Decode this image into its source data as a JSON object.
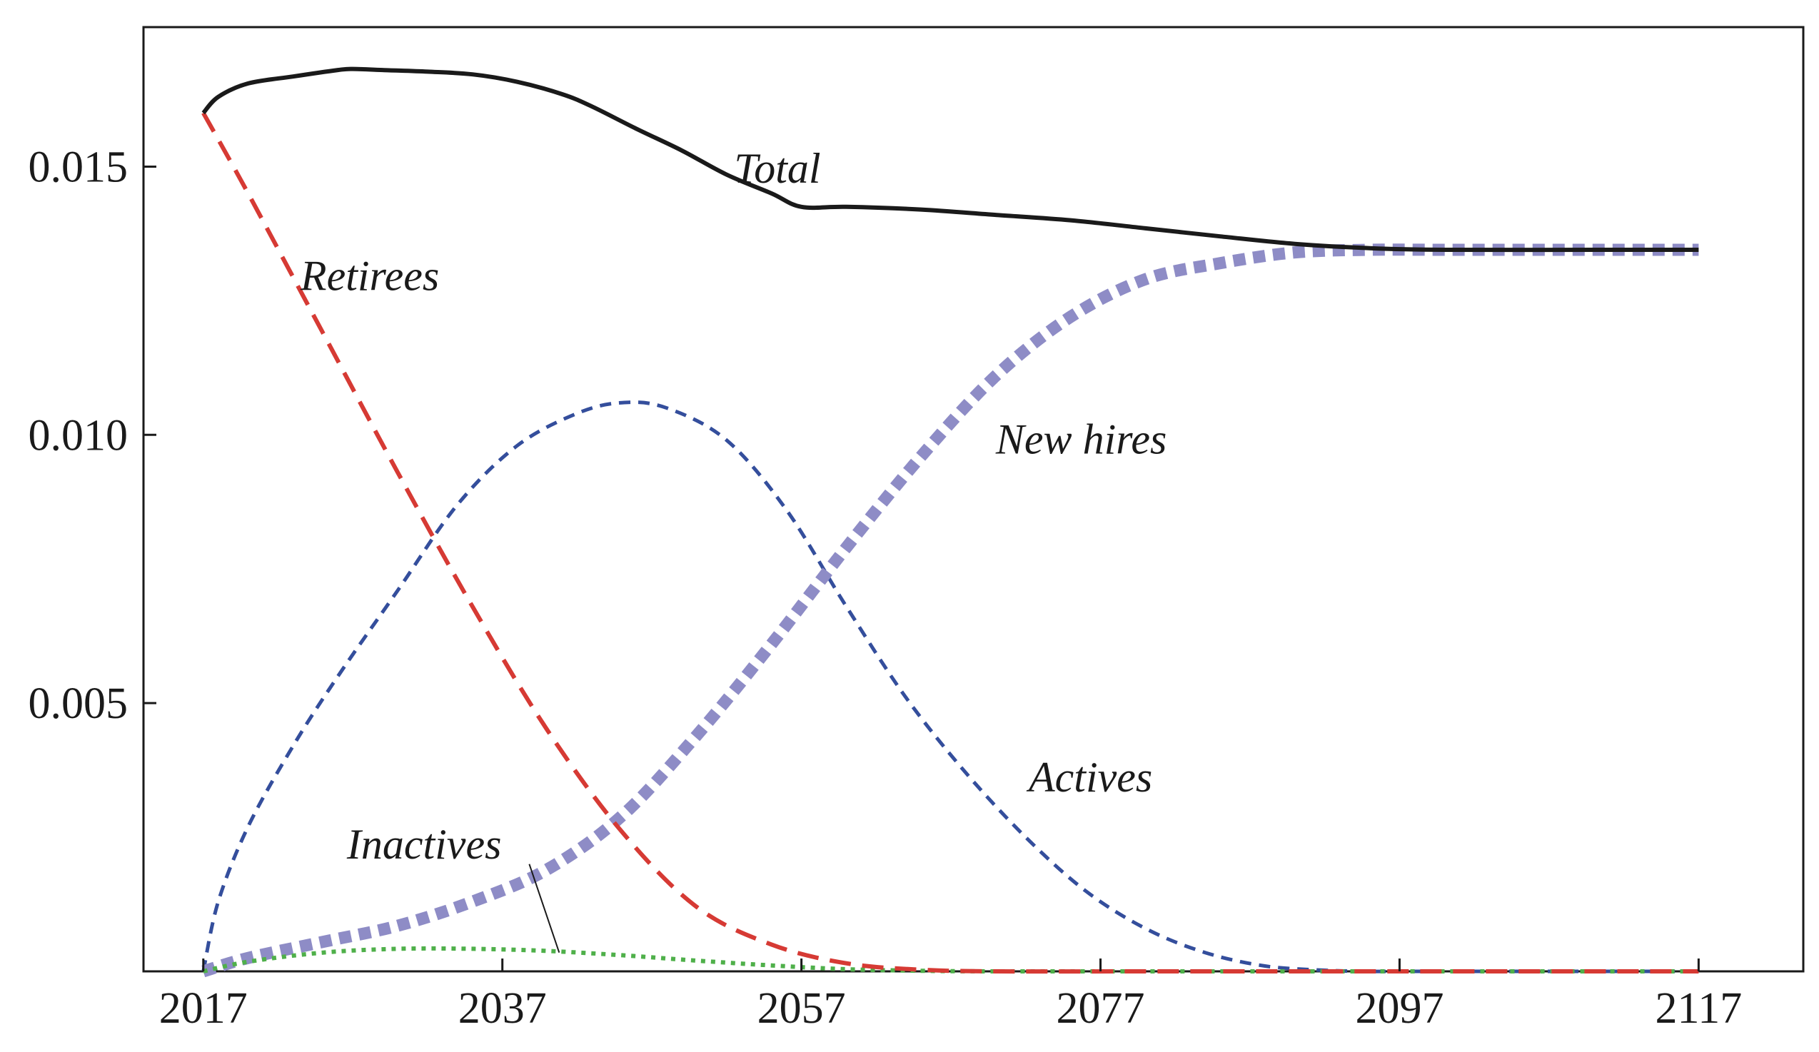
{
  "chart_data": {
    "type": "line",
    "title": "",
    "xlabel": "",
    "ylabel": "",
    "xlim": [
      2013,
      2124
    ],
    "ylim": [
      0,
      0.0176
    ],
    "grid": false,
    "legend": "none (series labeled inline)",
    "x_ticks": [
      2017,
      2037,
      2057,
      2077,
      2097,
      2117
    ],
    "x_tick_labels": [
      "2017",
      "2037",
      "2057",
      "2077",
      "2097",
      "2117"
    ],
    "y_ticks": [
      0.005,
      0.01,
      0.015
    ],
    "y_tick_labels": [
      "0.005",
      "0.010",
      "0.015"
    ],
    "series": [
      {
        "name": "Total",
        "label": "Total",
        "color": "#1a1a1a",
        "style": "solid",
        "x": [
          2017,
          2018,
          2020,
          2023,
          2026,
          2027,
          2029,
          2032,
          2035,
          2038,
          2041,
          2043,
          2046,
          2049,
          2052,
          2055,
          2057,
          2060,
          2065,
          2070,
          2075,
          2080,
          2085,
          2090,
          2095,
          2100,
          2110,
          2117
        ],
        "values": [
          0.016,
          0.0163,
          0.01655,
          0.01668,
          0.0168,
          0.01682,
          0.0168,
          0.01677,
          0.01672,
          0.01658,
          0.01635,
          0.01612,
          0.0157,
          0.0153,
          0.01485,
          0.0145,
          0.01425,
          0.01425,
          0.0142,
          0.0141,
          0.014,
          0.01385,
          0.0137,
          0.01356,
          0.01348,
          0.01345,
          0.01345,
          0.01345
        ]
      },
      {
        "name": "Retirees",
        "label": "Retirees",
        "color": "#d63a34",
        "style": "long-dash",
        "x": [
          2017,
          2020,
          2025,
          2030,
          2035,
          2040,
          2045,
          2050,
          2055,
          2060,
          2065,
          2070,
          2080,
          2090,
          2100,
          2117
        ],
        "values": [
          0.016,
          0.0145,
          0.0119,
          0.0093,
          0.0068,
          0.0045,
          0.0026,
          0.0012,
          0.0005,
          0.00015,
          3e-05,
          0.0,
          0.0,
          0.0,
          0.0,
          0.0
        ]
      },
      {
        "name": "Actives",
        "label": "Actives",
        "color": "#344e9c",
        "style": "short-dash",
        "x": [
          2017,
          2018,
          2020,
          2023,
          2026,
          2030,
          2034,
          2038,
          2042,
          2045,
          2048,
          2052,
          2056,
          2060,
          2064,
          2068,
          2072,
          2076,
          2080,
          2084,
          2088,
          2092,
          2095,
          2100,
          2117
        ],
        "values": [
          0.0,
          0.0013,
          0.0027,
          0.0042,
          0.0055,
          0.0071,
          0.0087,
          0.0098,
          0.0104,
          0.0106,
          0.0105,
          0.0099,
          0.0086,
          0.0068,
          0.0051,
          0.0037,
          0.0025,
          0.0015,
          0.0008,
          0.00035,
          0.0001,
          2e-05,
          0.0,
          0.0,
          0.0
        ]
      },
      {
        "name": "New hires",
        "label": "New hires",
        "color": "#8e8cc6",
        "style": "thick-dotted",
        "x": [
          2017,
          2020,
          2025,
          2030,
          2035,
          2040,
          2045,
          2050,
          2055,
          2060,
          2065,
          2070,
          2075,
          2080,
          2085,
          2090,
          2095,
          2100,
          2110,
          2117
        ],
        "values": [
          0.0,
          0.00025,
          0.00055,
          0.00085,
          0.0013,
          0.0019,
          0.0029,
          0.0044,
          0.0061,
          0.0079,
          0.0096,
          0.0111,
          0.0122,
          0.0129,
          0.0132,
          0.0134,
          0.01345,
          0.01345,
          0.01345,
          0.01345
        ]
      },
      {
        "name": "Inactives",
        "label": "Inactives",
        "color": "#4fb04a",
        "style": "dotted",
        "x": [
          2017,
          2020,
          2025,
          2030,
          2035,
          2040,
          2045,
          2050,
          2055,
          2060,
          2065,
          2070,
          2080,
          2100,
          2117
        ],
        "values": [
          0.0,
          0.00018,
          0.00035,
          0.00042,
          0.00042,
          0.00038,
          0.0003,
          0.0002,
          0.00011,
          4e-05,
          1e-05,
          0.0,
          0.0,
          0.0,
          0.0
        ]
      }
    ],
    "annotations": [
      {
        "text": "Total",
        "series": "Total"
      },
      {
        "text": "Retirees",
        "series": "Retirees"
      },
      {
        "text": "New hires",
        "series": "New hires"
      },
      {
        "text": "Actives",
        "series": "Actives"
      },
      {
        "text": "Inactives",
        "series": "Inactives",
        "leader_line": true
      }
    ]
  }
}
